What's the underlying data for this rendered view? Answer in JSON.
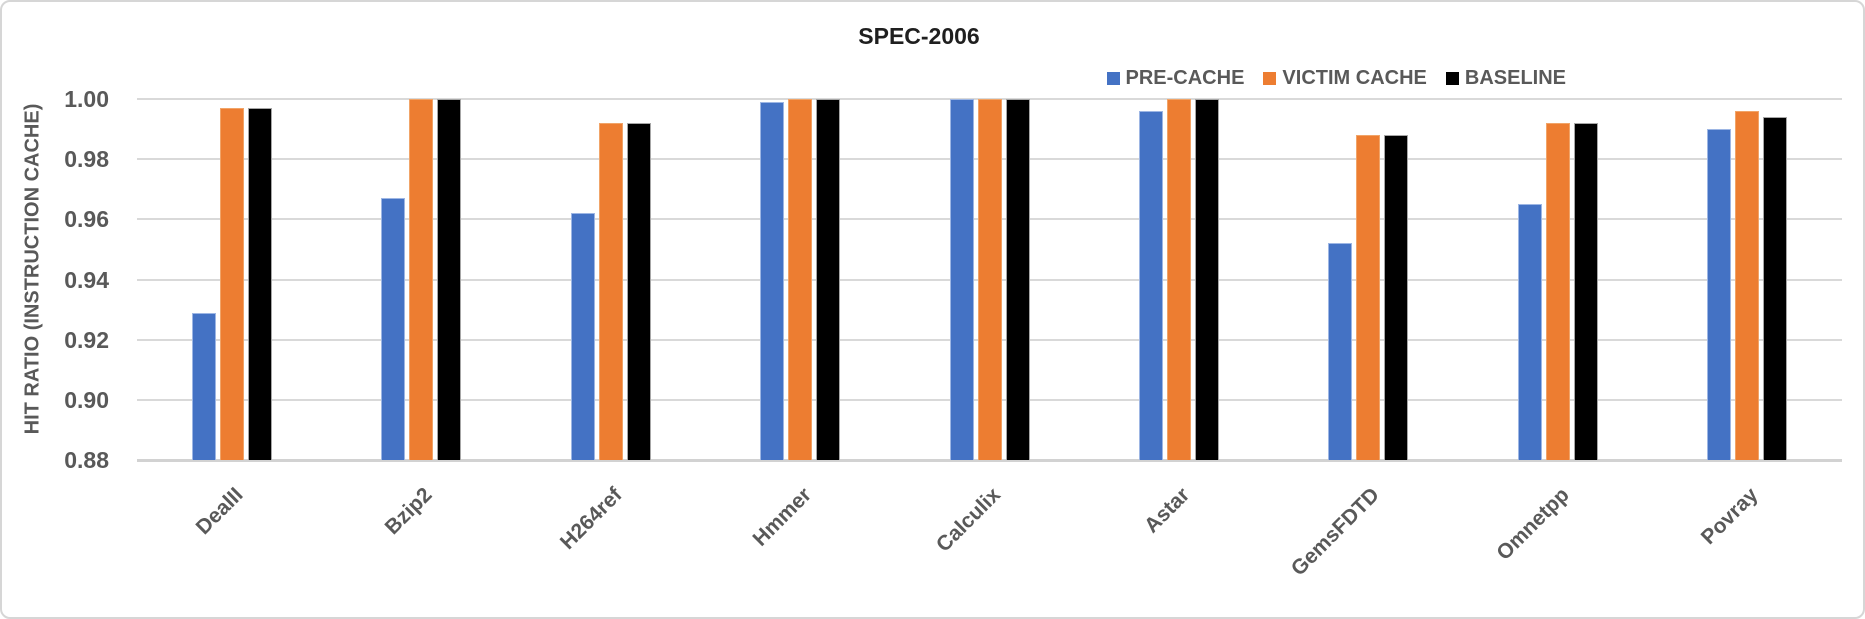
{
  "chart_data": {
    "type": "bar",
    "title": "SPEC-2006",
    "ylabel": "HIT RATIO (INSTRUCTION CACHE)",
    "xlabel": "",
    "ylim": [
      0.88,
      1.0
    ],
    "ytick_step": 0.02,
    "yticks": [
      "1.00",
      "0.98",
      "0.96",
      "0.94",
      "0.92",
      "0.90",
      "0.88"
    ],
    "grid": true,
    "legend_position": "top-right",
    "categories": [
      "DealII",
      "Bzip2",
      "H264ref",
      "Hmmer",
      "Calculix",
      "Astar",
      "GemsFDTD",
      "Omnetpp",
      "Povray"
    ],
    "series": [
      {
        "name": "PRE-CACHE",
        "color": "#4472C4",
        "values": [
          0.929,
          0.967,
          0.962,
          0.999,
          1.0,
          0.996,
          0.952,
          0.965,
          0.99
        ]
      },
      {
        "name": "VICTIM CACHE",
        "color": "#ED7D31",
        "values": [
          0.997,
          1.0,
          0.992,
          1.0,
          1.0,
          1.0,
          0.988,
          0.992,
          0.996
        ]
      },
      {
        "name": "BASELINE",
        "color": "#000000",
        "values": [
          0.997,
          1.0,
          0.992,
          1.0,
          1.0,
          1.0,
          0.988,
          0.992,
          0.994
        ]
      }
    ]
  },
  "colors": {
    "text": "#595959",
    "title_text": "#1F1F1F",
    "gridline": "#D9D9D9",
    "frame_border": "#D6D6D6"
  }
}
